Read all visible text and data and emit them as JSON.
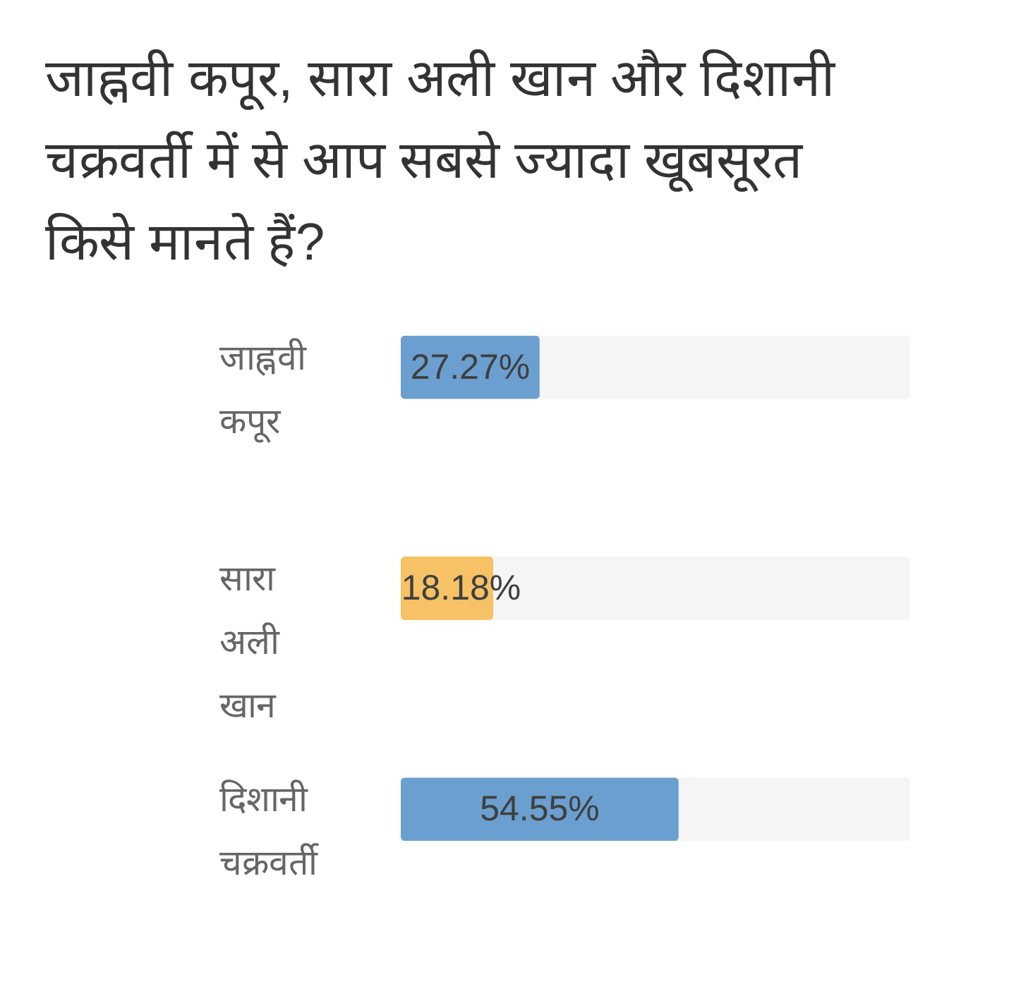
{
  "chart_data": {
    "type": "bar",
    "orientation": "horizontal",
    "title": "जाह्नवी कपूर, सारा अली खान और दिशानी चक्रवर्ती में से आप सबसे ज्यादा खूबसूरत किसे मानते हैं?",
    "categories": [
      "जाह्नवी कपूर",
      "सारा अली खान",
      "दिशानी चक्रवर्ती"
    ],
    "values": [
      27.27,
      18.18,
      54.55
    ],
    "value_labels": [
      "27.27%",
      "18.18%",
      "54.55%"
    ],
    "colors": [
      "#6b9fcf",
      "#f6c265",
      "#6b9fcf"
    ],
    "xlim": [
      0,
      100
    ],
    "tick_labels": "y",
    "legend": false
  }
}
